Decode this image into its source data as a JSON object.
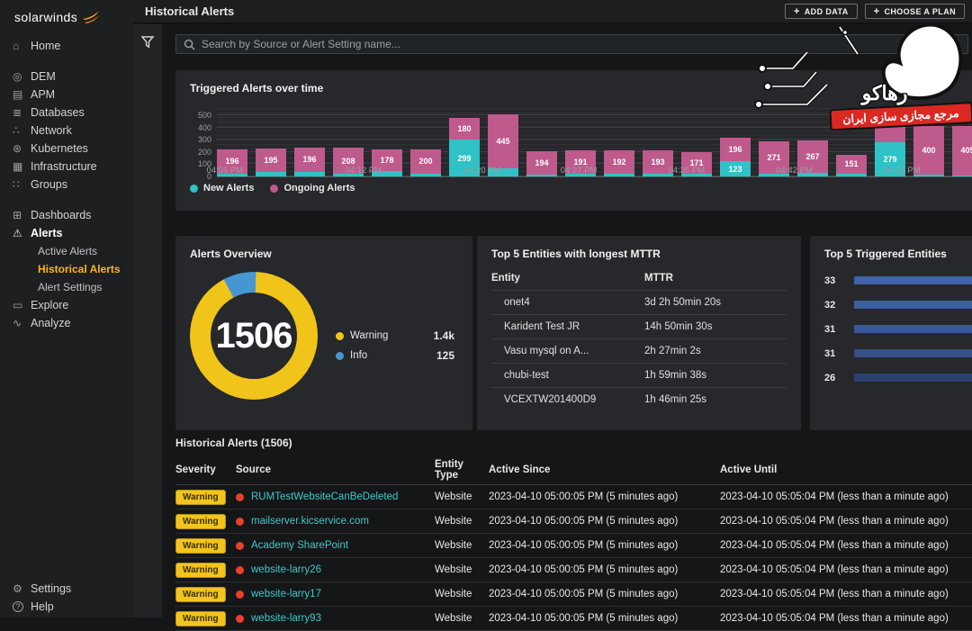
{
  "app": {
    "brand": "solarwinds"
  },
  "header": {
    "title": "Historical Alerts",
    "buttons": [
      {
        "label": "ADD DATA"
      },
      {
        "label": "CHOOSE A PLAN"
      }
    ]
  },
  "search": {
    "placeholder": "Search by Source or Alert Setting name..."
  },
  "sidebar": {
    "items": [
      {
        "label": "Home",
        "icon": "home",
        "glyph": "⌂"
      },
      {
        "label": "DEM",
        "icon": "dem",
        "glyph": "◎",
        "gap": true
      },
      {
        "label": "APM",
        "icon": "apm",
        "glyph": "▤"
      },
      {
        "label": "Databases",
        "icon": "databases",
        "glyph": "≣"
      },
      {
        "label": "Network",
        "icon": "network",
        "glyph": "∴"
      },
      {
        "label": "Kubernetes",
        "icon": "kubernetes",
        "glyph": "⊛"
      },
      {
        "label": "Infrastructure",
        "icon": "infrastructure",
        "glyph": "▦"
      },
      {
        "label": "Groups",
        "icon": "groups",
        "glyph": "∷"
      },
      {
        "label": "Dashboards",
        "icon": "dashboards",
        "glyph": "⊞",
        "gap": true
      },
      {
        "label": "Alerts",
        "icon": "alerts",
        "glyph": "⚠",
        "bold": true
      },
      {
        "label": "Active Alerts",
        "sub": true
      },
      {
        "label": "Historical Alerts",
        "sub": true,
        "active": true
      },
      {
        "label": "Alert Settings",
        "sub": true
      },
      {
        "label": "Explore",
        "icon": "explore",
        "glyph": "▭"
      },
      {
        "label": "Analyze",
        "icon": "analyze",
        "glyph": "∿"
      }
    ],
    "footer_items": [
      {
        "label": "Settings",
        "icon": "settings",
        "glyph": "⚙"
      },
      {
        "label": "Help",
        "icon": "help",
        "glyph": "?"
      }
    ]
  },
  "colors": {
    "teal": "#2fc2c6",
    "pink": "#bf5a8d",
    "yellow": "#f0c419",
    "blue": "#4596d1",
    "link": "#41c9ce",
    "badge_bg": "#f2c41d",
    "badge_text": "#3a3000",
    "red_dot": "#e8402a",
    "orange_active": "#ffb515",
    "top5_bars": [
      "#3f63a6",
      "#3c5e9e",
      "#38589a",
      "#344f8a",
      "#2a4170"
    ]
  },
  "panels": {
    "triggered": {
      "title": "Triggered Alerts over time",
      "type": "stacked-bar",
      "y_max": 590,
      "y_ticks": [
        0,
        100,
        200,
        300,
        400,
        500
      ],
      "x_ticks": [
        {
          "label": "04:05 PM",
          "pct": 1
        },
        {
          "label": "04:12 PM",
          "pct": 19
        },
        {
          "label": "04:20 PM",
          "pct": 34.5
        },
        {
          "label": "04:27 PM",
          "pct": 47
        },
        {
          "label": "04:35 PM",
          "pct": 61
        },
        {
          "label": "04:42 PM",
          "pct": 75
        },
        {
          "label": "04:50 PM",
          "pct": 89
        }
      ],
      "legend": [
        {
          "label": "New Alerts",
          "color_key": "teal"
        },
        {
          "label": "Ongoing Alerts",
          "color_key": "pink"
        }
      ],
      "bars": [
        {
          "new": 25,
          "ongoing": 196
        },
        {
          "new": 35,
          "ongoing": 195
        },
        {
          "new": 40,
          "ongoing": 196
        },
        {
          "new": 25,
          "ongoing": 208
        },
        {
          "new": 45,
          "ongoing": 178
        },
        {
          "new": 25,
          "ongoing": 200
        },
        {
          "new": 299,
          "ongoing": 180,
          "show_new": true
        },
        {
          "new": 65,
          "ongoing": 445
        },
        {
          "new": 15,
          "ongoing": 194
        },
        {
          "new": 20,
          "ongoing": 191
        },
        {
          "new": 20,
          "ongoing": 192
        },
        {
          "new": 20,
          "ongoing": 193
        },
        {
          "new": 25,
          "ongoing": 171
        },
        {
          "new": 123,
          "ongoing": 196,
          "show_new": true
        },
        {
          "new": 20,
          "ongoing": 271
        },
        {
          "new": 30,
          "ongoing": 267
        },
        {
          "new": 25,
          "ongoing": 151
        },
        {
          "new": 279,
          "ongoing": 185,
          "show_new": true,
          "show_ongoing": false
        },
        {
          "new": 15,
          "ongoing": 400
        },
        {
          "new": 10,
          "ongoing": 405
        }
      ]
    },
    "overview": {
      "title": "Alerts Overview",
      "type": "donut",
      "total": "1506",
      "start_deg": 332,
      "info_deg": 30,
      "legend": [
        {
          "label": "Warning",
          "value": "1.4k",
          "color_key": "yellow"
        },
        {
          "label": "Info",
          "value": "125",
          "color_key": "blue"
        }
      ]
    },
    "mttr": {
      "title": "Top 5 Entities with longest MTTR",
      "type": "table",
      "columns": [
        "Entity",
        "MTTR"
      ],
      "rows": [
        [
          "onet4",
          "3d 2h 50min 20s"
        ],
        [
          "Karident Test JR",
          "14h 50min 30s"
        ],
        [
          "Vasu mysql on A...",
          "2h 27min 2s"
        ],
        [
          "chubi-test",
          "1h 59min 38s"
        ],
        [
          "VCEXTW201400D9",
          "1h 46min 25s"
        ]
      ]
    },
    "top5": {
      "title": "Top 5 Triggered Entities",
      "type": "bar",
      "values": [
        33,
        32,
        31,
        31,
        26
      ],
      "max": 33
    },
    "historical": {
      "title": "Historical Alerts (1506)",
      "columns": [
        "Severity",
        "Source",
        "Entity Type",
        "Active Since",
        "Active Until"
      ],
      "rows": [
        {
          "severity": "Warning",
          "source": "RUMTestWebsiteCanBeDeleted",
          "entity_type": "Website",
          "active_since": "2023-04-10 05:00:05 PM (5 minutes ago)",
          "active_until": "2023-04-10 05:05:04 PM (less than a minute ago)"
        },
        {
          "severity": "Warning",
          "source": "mailserver.kicservice.com",
          "entity_type": "Website",
          "active_since": "2023-04-10 05:00:05 PM (5 minutes ago)",
          "active_until": "2023-04-10 05:05:04 PM (less than a minute ago)"
        },
        {
          "severity": "Warning",
          "source": "Academy SharePoint",
          "entity_type": "Website",
          "active_since": "2023-04-10 05:00:05 PM (5 minutes ago)",
          "active_until": "2023-04-10 05:05:04 PM (less than a minute ago)"
        },
        {
          "severity": "Warning",
          "source": "website-larry26",
          "entity_type": "Website",
          "active_since": "2023-04-10 05:00:05 PM (5 minutes ago)",
          "active_until": "2023-04-10 05:05:04 PM (less than a minute ago)"
        },
        {
          "severity": "Warning",
          "source": "website-larry17",
          "entity_type": "Website",
          "active_since": "2023-04-10 05:00:05 PM (5 minutes ago)",
          "active_until": "2023-04-10 05:05:04 PM (less than a minute ago)"
        },
        {
          "severity": "Warning",
          "source": "website-larry93",
          "entity_type": "Website",
          "active_since": "2023-04-10 05:00:05 PM (5 minutes ago)",
          "active_until": "2023-04-10 05:05:04 PM (less than a minute ago)"
        }
      ]
    }
  },
  "watermark": {
    "line1": "رهاکو",
    "line2": "مرجع مجازی سازی ایران"
  }
}
